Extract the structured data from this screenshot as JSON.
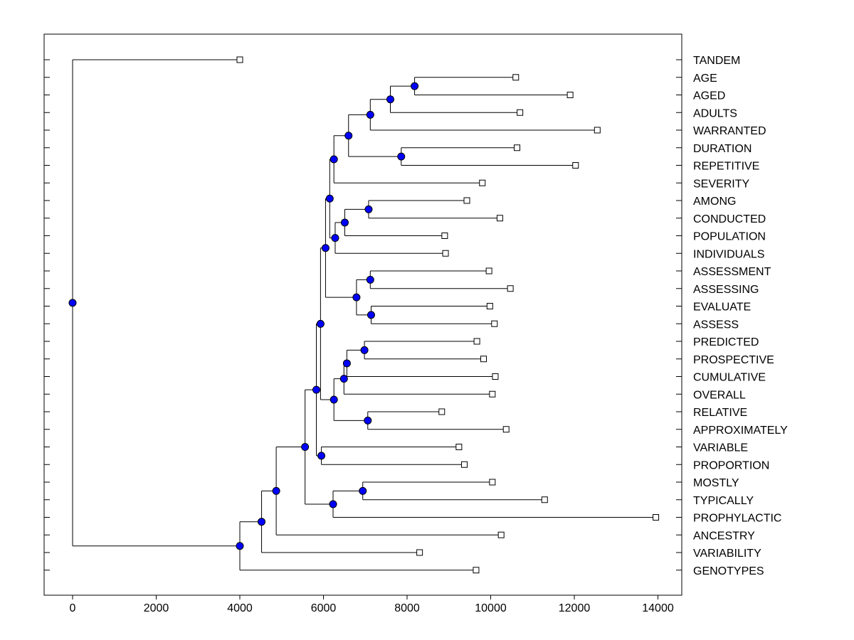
{
  "chart_data": {
    "type": "dendrogram",
    "title": "",
    "xlabel": "",
    "ylabel": "",
    "xlim": [
      -700,
      14700
    ],
    "xticks": [
      0,
      2000,
      4000,
      6000,
      8000,
      10000,
      12000,
      14000
    ],
    "xtick_labels": [
      "0",
      "2000",
      "4000",
      "6000",
      "8000",
      "10000",
      "12000",
      "14000"
    ],
    "node_color": "#0000ff",
    "leaves": [
      {
        "label": "TANDEM",
        "value": 4000
      },
      {
        "label": "AGE",
        "value": 10600
      },
      {
        "label": "AGED",
        "value": 11900
      },
      {
        "label": "ADULTS",
        "value": 10700
      },
      {
        "label": "WARRANTED",
        "value": 12550
      },
      {
        "label": "DURATION",
        "value": 10630
      },
      {
        "label": "REPETITIVE",
        "value": 12030
      },
      {
        "label": "SEVERITY",
        "value": 9800
      },
      {
        "label": "AMONG",
        "value": 9430
      },
      {
        "label": "CONDUCTED",
        "value": 10220
      },
      {
        "label": "POPULATION",
        "value": 8900
      },
      {
        "label": "INDIVIDUALS",
        "value": 8920
      },
      {
        "label": "ASSESSMENT",
        "value": 9960
      },
      {
        "label": "ASSESSING",
        "value": 10470
      },
      {
        "label": "EVALUATE",
        "value": 9980
      },
      {
        "label": "ASSESS",
        "value": 10090
      },
      {
        "label": "PREDICTED",
        "value": 9670
      },
      {
        "label": "PROSPECTIVE",
        "value": 9830
      },
      {
        "label": "CUMULATIVE",
        "value": 10110
      },
      {
        "label": "OVERALL",
        "value": 10040
      },
      {
        "label": "RELATIVE",
        "value": 8830
      },
      {
        "label": "APPROXIMATELY",
        "value": 10370
      },
      {
        "label": "VARIABLE",
        "value": 9240
      },
      {
        "label": "PROPORTION",
        "value": 9370
      },
      {
        "label": "MOSTLY",
        "value": 10040
      },
      {
        "label": "TYPICALLY",
        "value": 11290
      },
      {
        "label": "PROPHYLACTIC",
        "value": 13950
      },
      {
        "label": "ANCESTRY",
        "value": 10250
      },
      {
        "label": "VARIABILITY",
        "value": 8300
      },
      {
        "label": "GENOTYPES",
        "value": 9650
      }
    ],
    "merges": [
      {
        "id": "n1",
        "value": 8180,
        "children": [
          "AGE",
          "AGED"
        ]
      },
      {
        "id": "n2",
        "value": 7600,
        "children": [
          "n1",
          "ADULTS"
        ]
      },
      {
        "id": "n3",
        "value": 7120,
        "children": [
          "n2",
          "WARRANTED"
        ]
      },
      {
        "id": "n4",
        "value": 7860,
        "children": [
          "DURATION",
          "REPETITIVE"
        ]
      },
      {
        "id": "n5",
        "value": 6600,
        "children": [
          "n3",
          "n4"
        ]
      },
      {
        "id": "n6",
        "value": 6250,
        "children": [
          "n5",
          "SEVERITY"
        ]
      },
      {
        "id": "n7",
        "value": 7080,
        "children": [
          "AMONG",
          "CONDUCTED"
        ]
      },
      {
        "id": "n8",
        "value": 6510,
        "children": [
          "n7",
          "POPULATION"
        ]
      },
      {
        "id": "n9",
        "value": 6280,
        "children": [
          "n8",
          "INDIVIDUALS"
        ]
      },
      {
        "id": "n10",
        "value": 6150,
        "children": [
          "n6",
          "n9"
        ]
      },
      {
        "id": "n11",
        "value": 7120,
        "children": [
          "ASSESSMENT",
          "ASSESSING"
        ]
      },
      {
        "id": "n12",
        "value": 7140,
        "children": [
          "EVALUATE",
          "ASSESS"
        ]
      },
      {
        "id": "n13",
        "value": 6790,
        "children": [
          "n11",
          "n12"
        ]
      },
      {
        "id": "n14",
        "value": 6050,
        "children": [
          "n10",
          "n13"
        ]
      },
      {
        "id": "n15",
        "value": 6980,
        "children": [
          "PREDICTED",
          "PROSPECTIVE"
        ]
      },
      {
        "id": "n16",
        "value": 6560,
        "children": [
          "n15",
          "CUMULATIVE"
        ]
      },
      {
        "id": "n17",
        "value": 6490,
        "children": [
          "n16",
          "OVERALL"
        ]
      },
      {
        "id": "n18",
        "value": 7060,
        "children": [
          "RELATIVE",
          "APPROXIMATELY"
        ]
      },
      {
        "id": "n19",
        "value": 6250,
        "children": [
          "n17",
          "n18"
        ]
      },
      {
        "id": "n20",
        "value": 5950,
        "children": [
          "VARIABLE",
          "PROPORTION"
        ]
      },
      {
        "id": "n21",
        "value": 5930,
        "children": [
          "n14",
          "n19"
        ]
      },
      {
        "id": "n22",
        "value": 5830,
        "children": [
          "n21",
          "n20"
        ]
      },
      {
        "id": "n23",
        "value": 6940,
        "children": [
          "MOSTLY",
          "TYPICALLY"
        ]
      },
      {
        "id": "n24",
        "value": 6230,
        "children": [
          "n23",
          "PROPHYLACTIC"
        ]
      },
      {
        "id": "n25",
        "value": 5560,
        "children": [
          "n22",
          "n24"
        ]
      },
      {
        "id": "n26",
        "value": 4870,
        "children": [
          "n25",
          "ANCESTRY"
        ]
      },
      {
        "id": "n27",
        "value": 4520,
        "children": [
          "n26",
          "VARIABILITY"
        ]
      },
      {
        "id": "n28",
        "value": 4000,
        "children": [
          "n27",
          "GENOTYPES"
        ]
      },
      {
        "id": "n29",
        "value": 0,
        "children": [
          "TANDEM",
          "n28"
        ]
      }
    ]
  }
}
